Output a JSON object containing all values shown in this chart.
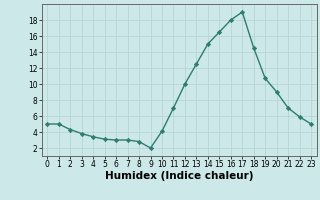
{
  "x": [
    0,
    1,
    2,
    3,
    4,
    5,
    6,
    7,
    8,
    9,
    10,
    11,
    12,
    13,
    14,
    15,
    16,
    17,
    18,
    19,
    20,
    21,
    22,
    23
  ],
  "y": [
    5.0,
    5.0,
    4.3,
    3.8,
    3.4,
    3.1,
    3.0,
    3.0,
    2.8,
    2.0,
    4.1,
    7.0,
    10.0,
    12.5,
    15.0,
    16.5,
    18.0,
    19.0,
    14.5,
    10.7,
    9.0,
    7.0,
    5.9,
    5.0
  ],
  "line_color": "#2e7d6e",
  "marker": "D",
  "marker_size": 2.2,
  "bg_color": "#cce8e8",
  "grid_color": "#b8d4d4",
  "xlabel": "Humidex (Indice chaleur)",
  "xlim": [
    -0.5,
    23.5
  ],
  "ylim": [
    1.0,
    20.0
  ],
  "yticks": [
    2,
    4,
    6,
    8,
    10,
    12,
    14,
    16,
    18
  ],
  "xticks": [
    0,
    1,
    2,
    3,
    4,
    5,
    6,
    7,
    8,
    9,
    10,
    11,
    12,
    13,
    14,
    15,
    16,
    17,
    18,
    19,
    20,
    21,
    22,
    23
  ],
  "tick_fontsize": 5.5,
  "xlabel_fontsize": 7.5,
  "linewidth": 1.0
}
